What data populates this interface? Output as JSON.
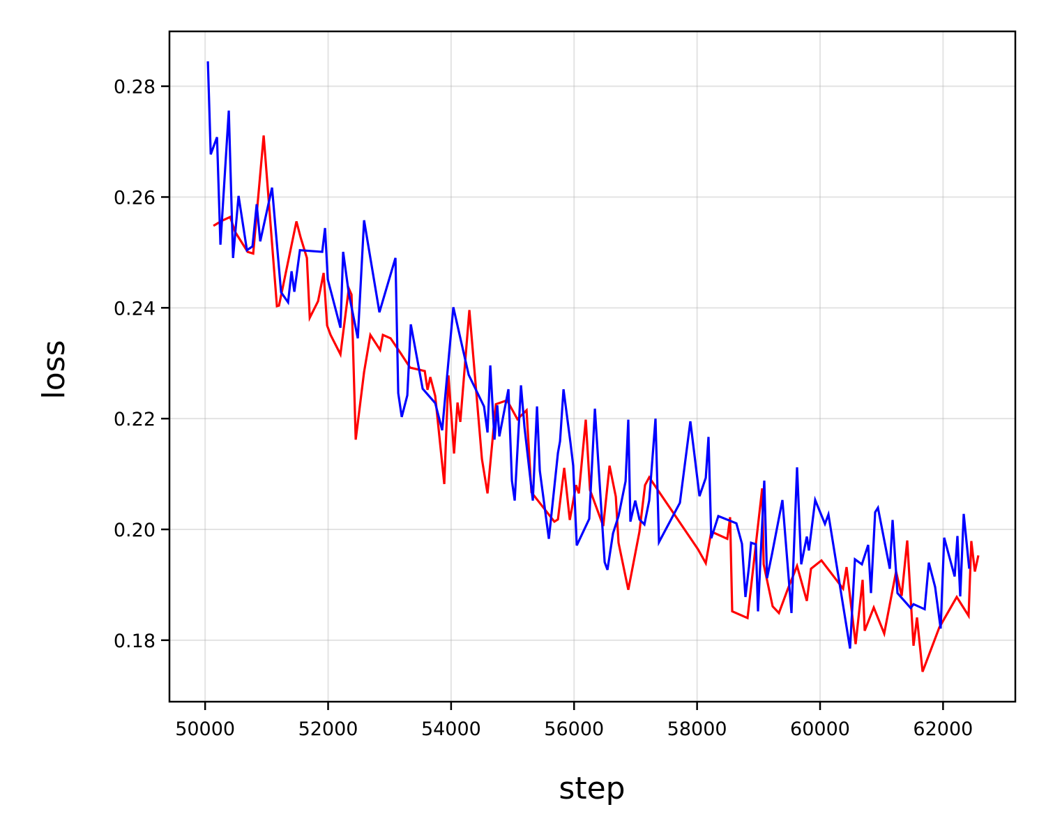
{
  "chart_data": {
    "type": "line",
    "title": "",
    "xlabel": "step",
    "ylabel": "loss",
    "xlim": [
      49420,
      63175
    ],
    "ylim": [
      0.1689,
      0.2899
    ],
    "xticks": [
      50000,
      52000,
      54000,
      56000,
      58000,
      60000,
      62000
    ],
    "xtick_labels": [
      "50000",
      "52000",
      "54000",
      "56000",
      "58000",
      "60000",
      "62000"
    ],
    "yticks": [
      0.18,
      0.2,
      0.22,
      0.24,
      0.26,
      0.28
    ],
    "ytick_labels": [
      "0.18",
      "0.20",
      "0.22",
      "0.24",
      "0.26",
      "0.28"
    ],
    "grid": true,
    "legend": null,
    "series": [
      {
        "name": "red",
        "color": "#ff0000",
        "x": [
          50136,
          50272,
          50408,
          50488,
          50692,
          50782,
          50952,
          51168,
          51202,
          51485,
          51553,
          51655,
          51701,
          51837,
          51927,
          51984,
          52041,
          52200,
          52336,
          52381,
          52449,
          52585,
          52687,
          52846,
          52891,
          53016,
          53186,
          53333,
          53571,
          53617,
          53662,
          53741,
          53889,
          53957,
          54048,
          54104,
          54150,
          54297,
          54501,
          54592,
          54728,
          54909,
          55079,
          55227,
          55306,
          55680,
          55737,
          55839,
          55930,
          56032,
          56077,
          56190,
          56259,
          56474,
          56576,
          56678,
          56723,
          56882,
          57063,
          57154,
          57222,
          58016,
          58141,
          58231,
          58492,
          58537,
          58571,
          58821,
          59059,
          59082,
          59229,
          59331,
          59467,
          59626,
          59785,
          59853,
          60023,
          60374,
          60431,
          60578,
          60692,
          60726,
          60873,
          61043,
          61236,
          61327,
          61417,
          61519,
          61576,
          61667,
          61939,
          62222,
          62415,
          62460,
          62517,
          62574
        ],
        "y": [
          0.2548,
          0.2557,
          0.2564,
          0.2537,
          0.2501,
          0.2498,
          0.2711,
          0.2403,
          0.2404,
          0.2556,
          0.2527,
          0.249,
          0.2382,
          0.2412,
          0.2463,
          0.2368,
          0.2351,
          0.2316,
          0.2435,
          0.2424,
          0.2162,
          0.2284,
          0.2351,
          0.2324,
          0.2351,
          0.2345,
          0.2317,
          0.2292,
          0.2286,
          0.2252,
          0.2275,
          0.2241,
          0.2082,
          0.2278,
          0.2137,
          0.2229,
          0.2194,
          0.2396,
          0.2127,
          0.2065,
          0.2226,
          0.2233,
          0.2199,
          0.2215,
          0.2067,
          0.2014,
          0.2018,
          0.2111,
          0.2017,
          0.208,
          0.2065,
          0.2198,
          0.2071,
          0.2006,
          0.2115,
          0.2059,
          0.1976,
          0.1891,
          0.1996,
          0.208,
          0.2094,
          0.1964,
          0.1939,
          0.1996,
          0.1983,
          0.2022,
          0.1852,
          0.184,
          0.2074,
          0.1937,
          0.1861,
          0.1849,
          0.189,
          0.1934,
          0.1871,
          0.1929,
          0.1944,
          0.1893,
          0.1932,
          0.1793,
          0.1909,
          0.1817,
          0.1859,
          0.1812,
          0.1924,
          0.188,
          0.198,
          0.179,
          0.1841,
          0.1743,
          0.1823,
          0.1878,
          0.1844,
          0.1979,
          0.1924,
          0.1953
        ]
      },
      {
        "name": "blue",
        "color": "#0000ff",
        "x": [
          50045,
          50091,
          50193,
          50249,
          50385,
          50454,
          50544,
          50680,
          50771,
          50839,
          50896,
          51088,
          51236,
          51349,
          51406,
          51451,
          51542,
          51905,
          51950,
          51995,
          52200,
          52245,
          52336,
          52483,
          52585,
          52834,
          53095,
          53141,
          53197,
          53288,
          53345,
          53537,
          53741,
          53855,
          54036,
          54286,
          54535,
          54592,
          54637,
          54705,
          54751,
          54785,
          54932,
          54989,
          55034,
          55136,
          55193,
          55329,
          55397,
          55442,
          55590,
          55737,
          55771,
          55828,
          55941,
          55986,
          56043,
          56247,
          56338,
          56497,
          56542,
          56633,
          56723,
          56837,
          56882,
          56916,
          56995,
          57063,
          57143,
          57222,
          57324,
          57381,
          57721,
          57891,
          58039,
          58141,
          58186,
          58231,
          58345,
          58639,
          58730,
          58787,
          58844,
          58878,
          58957,
          58991,
          59093,
          59138,
          59218,
          59388,
          59535,
          59626,
          59694,
          59785,
          59819,
          59921,
          60079,
          60136,
          60488,
          60567,
          60680,
          60782,
          60828,
          60896,
          60941,
          61134,
          61179,
          61259,
          61474,
          61519,
          61701,
          61769,
          61871,
          61961,
          62018,
          62188,
          62234,
          62279,
          62336,
          62426
        ],
        "y": [
          0.2845,
          0.2677,
          0.2708,
          0.2514,
          0.2756,
          0.249,
          0.2602,
          0.2504,
          0.2511,
          0.2587,
          0.252,
          0.2617,
          0.2428,
          0.241,
          0.2466,
          0.2429,
          0.2504,
          0.2501,
          0.2544,
          0.2451,
          0.2364,
          0.2501,
          0.2426,
          0.2345,
          0.2558,
          0.2392,
          0.249,
          0.2246,
          0.2203,
          0.2242,
          0.237,
          0.2254,
          0.2228,
          0.2179,
          0.2401,
          0.2279,
          0.2222,
          0.2175,
          0.2296,
          0.2162,
          0.2224,
          0.2168,
          0.2253,
          0.2088,
          0.2052,
          0.226,
          0.2185,
          0.2052,
          0.2222,
          0.2106,
          0.1983,
          0.2138,
          0.2159,
          0.2253,
          0.2156,
          0.2115,
          0.1971,
          0.2019,
          0.2218,
          0.1941,
          0.1927,
          0.1993,
          0.2024,
          0.2087,
          0.2198,
          0.2014,
          0.2052,
          0.2018,
          0.2009,
          0.2052,
          0.22,
          0.1977,
          0.2048,
          0.2195,
          0.206,
          0.2093,
          0.2167,
          0.1984,
          0.2024,
          0.2011,
          0.1974,
          0.1878,
          0.1933,
          0.1976,
          0.1973,
          0.1852,
          0.2088,
          0.1912,
          0.1955,
          0.2053,
          0.1849,
          0.2112,
          0.1937,
          0.1987,
          0.1962,
          0.2053,
          0.201,
          0.2027,
          0.1785,
          0.1946,
          0.1937,
          0.1972,
          0.1885,
          0.2031,
          0.2039,
          0.1929,
          0.2017,
          0.1885,
          0.1858,
          0.1865,
          0.1856,
          0.194,
          0.1896,
          0.1821,
          0.1985,
          0.1915,
          0.1988,
          0.1879,
          0.2028,
          0.1929
        ]
      }
    ]
  },
  "axes": {
    "xlabel": "step",
    "ylabel": "loss"
  }
}
